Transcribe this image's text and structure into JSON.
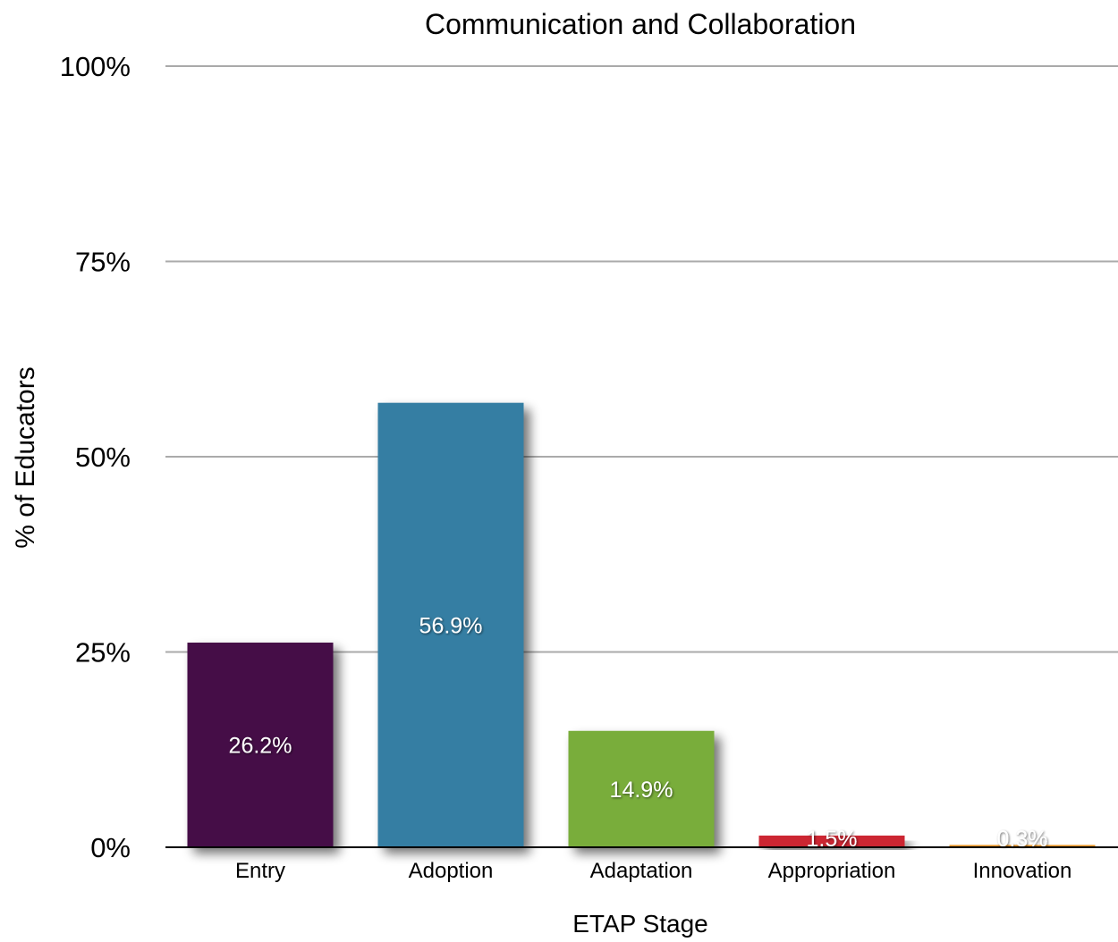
{
  "chart_data": {
    "type": "bar",
    "title": "Communication and Collaboration",
    "xlabel": "ETAP Stage",
    "ylabel": "% of Educators",
    "ylim": [
      0,
      100
    ],
    "yticks": [
      0,
      25,
      50,
      75,
      100
    ],
    "ytick_labels": [
      "0%",
      "25%",
      "50%",
      "75%",
      "100%"
    ],
    "grid": true,
    "categories": [
      "Entry",
      "Adoption",
      "Adaptation",
      "Appropriation",
      "Innovation"
    ],
    "values": [
      26.2,
      56.9,
      14.9,
      1.5,
      0.3
    ],
    "data_labels": [
      "26.2%",
      "56.9%",
      "14.9%",
      "1.5%",
      "0.3%"
    ],
    "colors": [
      "#450d46",
      "#367ea3",
      "#79ad3b",
      "#cc2630",
      "#e8962c"
    ],
    "gridline_color": "#aaaaaa",
    "axis_color": "#000000"
  }
}
